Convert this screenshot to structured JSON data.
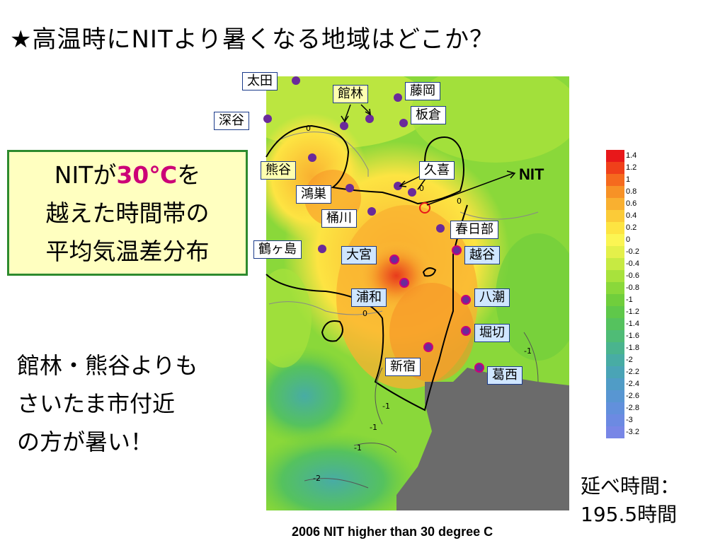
{
  "title": "★高温時にNITより暑くなる地域はどこか？",
  "callout": {
    "line1_pre": "NITが",
    "line1_hi": "30℃",
    "line1_post": "を",
    "line2": "越えた時間帯の",
    "line3": "平均気温差分布"
  },
  "note": {
    "line1": "館林・熊谷よりも",
    "line2": "さいたま市付近",
    "line3": "の方が暑い！"
  },
  "footnote": {
    "line1": "延べ時間：",
    "line2": "195.5時間"
  },
  "caption": "2006 NIT higher than 30 degree C",
  "nit_label": "NIT",
  "places": [
    {
      "name": "太田",
      "style": "white"
    },
    {
      "name": "館林",
      "style": "yellow"
    },
    {
      "name": "藤岡",
      "style": "white"
    },
    {
      "name": "深谷",
      "style": "white"
    },
    {
      "name": "板倉",
      "style": "white"
    },
    {
      "name": "熊谷",
      "style": "yellow"
    },
    {
      "name": "久喜",
      "style": "white"
    },
    {
      "name": "鴻巣",
      "style": "white"
    },
    {
      "name": "桶川",
      "style": "white"
    },
    {
      "name": "春日部",
      "style": "white"
    },
    {
      "name": "鶴ヶ島",
      "style": "white"
    },
    {
      "name": "大宮",
      "style": "blue"
    },
    {
      "name": "越谷",
      "style": "blue"
    },
    {
      "name": "浦和",
      "style": "blue"
    },
    {
      "name": "八潮",
      "style": "blue"
    },
    {
      "name": "堀切",
      "style": "blue"
    },
    {
      "name": "新宿",
      "style": "white"
    },
    {
      "name": "葛西",
      "style": "blue"
    }
  ],
  "contour_labels": [
    "0",
    "0",
    "0",
    "0",
    "-1",
    "-1",
    "-1",
    "-1",
    "-2"
  ],
  "legend": {
    "ticks": [
      "1.4",
      "1.2",
      "1",
      "0.8",
      "0.6",
      "0.4",
      "0.2",
      "0",
      "-0.2",
      "-0.4",
      "-0.6",
      "-0.8",
      "-1",
      "-1.2",
      "-1.4",
      "-1.6",
      "-1.8",
      "-2",
      "-2.2",
      "-2.4",
      "-2.6",
      "-2.8",
      "-3",
      "-3.2"
    ],
    "colors": [
      "#e8181a",
      "#f0401a",
      "#f56a1e",
      "#f79226",
      "#f9b030",
      "#fbcb38",
      "#fde442",
      "#fbf553",
      "#e4f04a",
      "#c7ea42",
      "#a8e23c",
      "#8ad83a",
      "#70ce3c",
      "#5fc84a",
      "#55c25e",
      "#4fbc76",
      "#4ab48e",
      "#48aca4",
      "#4aa4b6",
      "#509cc6",
      "#5896d2",
      "#6290dc",
      "#6c8ae2",
      "#7886e6"
    ]
  },
  "colors": {
    "callout_border": "#2e8b2e",
    "callout_bg": "#ffffc0",
    "highlight": "#cc0077",
    "station_dot": "#6a2a9a",
    "sea": "#6b6b6b"
  }
}
